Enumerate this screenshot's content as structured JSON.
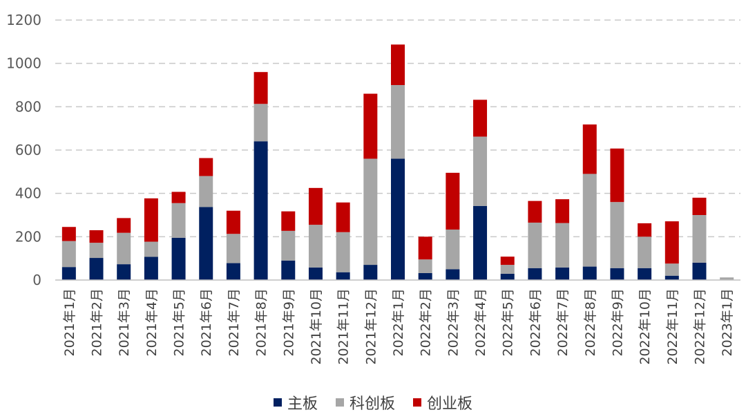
{
  "chart_data": {
    "type": "bar",
    "stacked": true,
    "categories": [
      "2021年1月",
      "2021年2月",
      "2021年3月",
      "2021年4月",
      "2021年5月",
      "2021年6月",
      "2021年7月",
      "2021年8月",
      "2021年9月",
      "2021年10月",
      "2021年11月",
      "2021年12月",
      "2022年1月",
      "2022年2月",
      "2022年3月",
      "2022年4月",
      "2022年5月",
      "2022年6月",
      "2022年7月",
      "2022年8月",
      "2022年9月",
      "2022年10月",
      "2022年11月",
      "2022年12月",
      "2023年1月"
    ],
    "series": [
      {
        "name": "主板",
        "color": "#002060",
        "values": [
          60,
          102,
          73,
          107,
          195,
          337,
          78,
          640,
          90,
          58,
          36,
          70,
          560,
          32,
          50,
          342,
          29,
          55,
          58,
          62,
          55,
          55,
          20,
          80,
          0
        ]
      },
      {
        "name": "科创板",
        "color": "#a6a6a6",
        "values": [
          120,
          70,
          145,
          70,
          160,
          143,
          135,
          173,
          137,
          197,
          185,
          490,
          340,
          63,
          183,
          320,
          41,
          210,
          205,
          428,
          305,
          145,
          56,
          220,
          12
        ]
      },
      {
        "name": "创业板",
        "color": "#c00000",
        "values": [
          65,
          58,
          68,
          200,
          52,
          83,
          107,
          147,
          90,
          170,
          137,
          300,
          187,
          105,
          262,
          170,
          38,
          100,
          110,
          228,
          247,
          62,
          195,
          80,
          0
        ]
      }
    ],
    "ylim": [
      0,
      1200
    ],
    "yticks": [
      0,
      200,
      400,
      600,
      800,
      1000,
      1200
    ],
    "grid": true,
    "legend": "bottom",
    "title": "",
    "xlabel": "",
    "ylabel": ""
  }
}
